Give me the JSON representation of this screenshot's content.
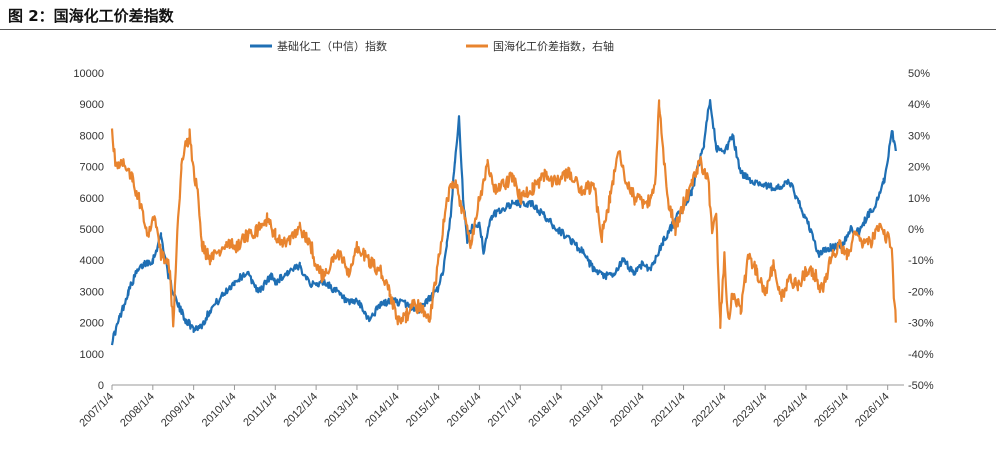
{
  "figure_title": "图 2：国海化工价差指数",
  "colors": {
    "series1": "#1f6fb4",
    "series2": "#e8842f",
    "axis": "#999999"
  },
  "chart_data": {
    "type": "line",
    "title": "国海化工价差指数",
    "legend_position": "top-center",
    "x_tick_labels": [
      "2007/1/4",
      "2008/1/4",
      "2009/1/4",
      "2010/1/4",
      "2011/1/4",
      "2012/1/4",
      "2013/1/4",
      "2014/1/4",
      "2015/1/4",
      "2016/1/4",
      "2017/1/4",
      "2018/1/4",
      "2019/1/4",
      "2020/1/4",
      "2021/1/4",
      "2022/1/4",
      "2023/1/4",
      "2024/1/4",
      "2025/1/4",
      "2026/1/4"
    ],
    "xlim": [
      2007.0,
      2026.4
    ],
    "y_left": {
      "ticks": [
        "0",
        "1000",
        "2000",
        "3000",
        "4000",
        "5000",
        "6000",
        "7000",
        "8000",
        "9000",
        "10000"
      ],
      "ylim": [
        0,
        10000
      ]
    },
    "y_right": {
      "ticks": [
        "-50%",
        "-40%",
        "-30%",
        "-20%",
        "-10%",
        "0%",
        "10%",
        "20%",
        "30%",
        "40%",
        "50%"
      ],
      "ylim": [
        -50,
        50
      ]
    },
    "series": [
      {
        "name": "基础化工（中信）指数",
        "axis": "left",
        "x": [
          2007.0,
          2007.2,
          2007.4,
          2007.6,
          2007.8,
          2008.0,
          2008.2,
          2008.4,
          2008.6,
          2008.8,
          2009.0,
          2009.2,
          2009.4,
          2009.6,
          2009.8,
          2010.0,
          2010.3,
          2010.6,
          2010.9,
          2011.0,
          2011.3,
          2011.6,
          2011.9,
          2012.2,
          2012.5,
          2012.8,
          2013.0,
          2013.3,
          2013.6,
          2013.9,
          2014.2,
          2014.5,
          2014.8,
          2015.0,
          2015.1,
          2015.2,
          2015.3,
          2015.4,
          2015.5,
          2015.6,
          2015.7,
          2015.8,
          2016.0,
          2016.1,
          2016.3,
          2016.5,
          2016.8,
          2017.0,
          2017.3,
          2017.6,
          2017.9,
          2018.2,
          2018.5,
          2018.8,
          2019.0,
          2019.3,
          2019.5,
          2019.8,
          2020.0,
          2020.2,
          2020.5,
          2020.8,
          2021.0,
          2021.2,
          2021.5,
          2021.65,
          2021.8,
          2022.0,
          2022.2,
          2022.4,
          2022.6,
          2022.8,
          2023.0,
          2023.3,
          2023.6,
          2023.9,
          2024.1,
          2024.3,
          2024.6,
          2024.9,
          2025.1,
          2025.3,
          2025.5,
          2025.7,
          2025.9,
          2026.0,
          2026.1,
          2026.2
        ],
        "values": [
          1400,
          2200,
          3000,
          3600,
          3900,
          4000,
          4800,
          3400,
          2600,
          2100,
          1800,
          1900,
          2400,
          2700,
          3000,
          3300,
          3600,
          3000,
          3500,
          3300,
          3600,
          3800,
          3200,
          3300,
          3000,
          2600,
          2700,
          2100,
          2600,
          2700,
          2600,
          2400,
          2800,
          3100,
          3600,
          4500,
          5500,
          7200,
          8600,
          6000,
          4600,
          5000,
          5200,
          4300,
          5400,
          5600,
          5800,
          5800,
          5800,
          5400,
          5000,
          4700,
          4300,
          3700,
          3500,
          3500,
          4000,
          3600,
          3900,
          3700,
          4600,
          5300,
          5700,
          6200,
          7700,
          9200,
          7600,
          7400,
          8000,
          6800,
          6600,
          6500,
          6400,
          6300,
          6500,
          5600,
          5000,
          4200,
          4400,
          4500,
          5000,
          4900,
          5400,
          5800,
          6500,
          7100,
          8200,
          7500
        ]
      },
      {
        "name": "国海化工价差指数，右轴",
        "axis": "right",
        "x": [
          2007.0,
          2007.1,
          2007.3,
          2007.5,
          2007.7,
          2007.9,
          2008.0,
          2008.2,
          2008.4,
          2008.5,
          2008.6,
          2008.7,
          2008.8,
          2008.9,
          2009.0,
          2009.1,
          2009.2,
          2009.4,
          2009.6,
          2009.8,
          2010.0,
          2010.3,
          2010.6,
          2010.8,
          2011.0,
          2011.3,
          2011.6,
          2011.9,
          2012.0,
          2012.2,
          2012.4,
          2012.6,
          2012.8,
          2013.0,
          2013.3,
          2013.6,
          2013.8,
          2014.0,
          2014.2,
          2014.4,
          2014.6,
          2014.8,
          2015.0,
          2015.2,
          2015.4,
          2015.6,
          2015.8,
          2016.0,
          2016.2,
          2016.4,
          2016.6,
          2016.8,
          2017.0,
          2017.3,
          2017.6,
          2017.9,
          2018.2,
          2018.5,
          2018.8,
          2019.0,
          2019.2,
          2019.4,
          2019.6,
          2019.8,
          2020.0,
          2020.2,
          2020.3,
          2020.4,
          2020.6,
          2020.8,
          2021.0,
          2021.2,
          2021.4,
          2021.6,
          2021.7,
          2021.8,
          2021.9,
          2022.0,
          2022.1,
          2022.2,
          2022.4,
          2022.6,
          2022.8,
          2023.0,
          2023.2,
          2023.4,
          2023.6,
          2023.8,
          2024.0,
          2024.2,
          2024.4,
          2024.6,
          2024.8,
          2025.0,
          2025.2,
          2025.4,
          2025.6,
          2025.8,
          2025.9,
          2026.0,
          2026.1,
          2026.15,
          2026.2
        ],
        "values": [
          30,
          20,
          22,
          16,
          8,
          -2,
          5,
          -8,
          -12,
          -30,
          -2,
          20,
          26,
          30,
          18,
          12,
          -5,
          -10,
          -8,
          -4,
          -6,
          -2,
          0,
          3,
          -2,
          -5,
          0,
          -6,
          -12,
          -16,
          -10,
          -8,
          -15,
          -6,
          -10,
          -14,
          -20,
          -30,
          -28,
          -24,
          -26,
          -28,
          -10,
          10,
          15,
          5,
          -5,
          10,
          20,
          12,
          14,
          17,
          10,
          13,
          17,
          15,
          18,
          12,
          14,
          -2,
          10,
          25,
          15,
          10,
          8,
          9,
          14,
          40,
          10,
          0,
          8,
          15,
          22,
          16,
          0,
          5,
          -30,
          -8,
          -30,
          -20,
          -26,
          -8,
          -14,
          -20,
          -12,
          -22,
          -16,
          -18,
          -14,
          -14,
          -20,
          -10,
          -5,
          -8,
          -2,
          -5,
          -4,
          0,
          -2,
          -3,
          -5,
          -20,
          -30
        ]
      }
    ]
  }
}
